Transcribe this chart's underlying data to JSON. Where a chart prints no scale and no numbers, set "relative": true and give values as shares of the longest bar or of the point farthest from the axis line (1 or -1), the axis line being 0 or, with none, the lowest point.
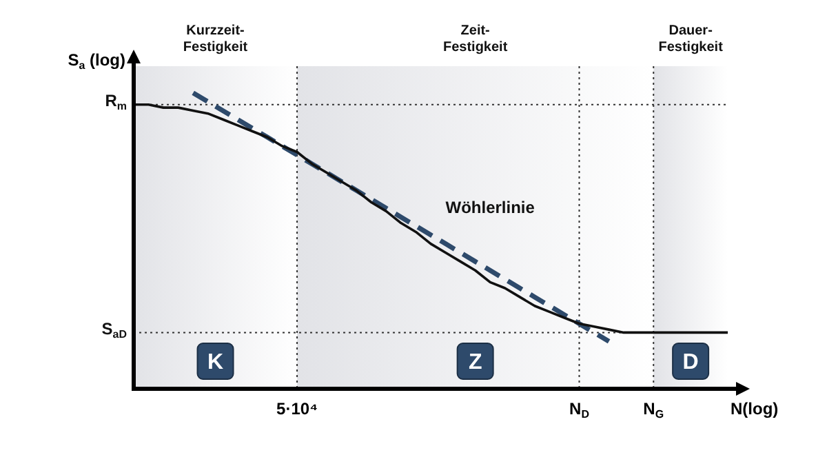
{
  "chart_data": {
    "type": "line",
    "relative": true,
    "xlabel": "N(log)",
    "ylabel": "S$_{a}$ (log)",
    "categories": [
      null,
      null,
      null,
      null,
      null,
      null,
      null,
      null,
      null,
      null,
      null,
      "5·10⁴",
      null,
      null,
      null,
      null,
      null,
      null,
      null,
      null,
      null,
      null,
      null,
      null,
      null,
      null,
      null,
      null,
      null,
      null,
      "N$_{D}$",
      null,
      null,
      null,
      null,
      "N$_{G}$",
      null,
      null,
      null,
      null,
      null
    ],
    "series": [
      {
        "color": "#111111",
        "line_style": "solid",
        "values": [
          0.96,
          0.96,
          0.95,
          0.95,
          0.94,
          0.93,
          0.91,
          0.89,
          0.87,
          0.85,
          0.82,
          0.8,
          0.76,
          0.73,
          0.7,
          0.67,
          0.63,
          0.6,
          0.56,
          0.53,
          0.49,
          0.46,
          0.43,
          0.4,
          0.36,
          0.34,
          0.31,
          0.28,
          0.26,
          0.24,
          0.22,
          0.21,
          0.2,
          0.19,
          0.19,
          0.19,
          0.19,
          0.19,
          0.19,
          0.19,
          0.19
        ]
      },
      {
        "color": "#2e4a6b",
        "line_style": "dashed",
        "values": [
          null,
          null,
          null,
          null,
          1.0,
          0.97,
          0.94,
          0.91,
          0.88,
          0.85,
          0.82,
          0.79,
          0.76,
          0.73,
          0.7,
          0.67,
          0.64,
          0.61,
          0.58,
          0.55,
          0.52,
          0.49,
          0.46,
          0.43,
          0.4,
          0.37,
          0.34,
          0.31,
          0.28,
          0.25,
          0.22,
          0.19,
          0.16,
          null,
          null,
          null,
          null,
          null,
          null,
          null,
          null
        ]
      }
    ],
    "ref_lines": [
      {
        "axis": "y",
        "value": 0.96,
        "label": "R$_{m}$",
        "line_style": "dotted"
      },
      {
        "axis": "y",
        "value": 0.19,
        "label": "S$_{aD}$",
        "line_style": "dotted"
      },
      {
        "axis": "x",
        "value": "5·10⁴",
        "line_style": "dotted"
      },
      {
        "axis": "x",
        "value": "N$_{D}$",
        "line_style": "dotted"
      },
      {
        "axis": "x",
        "value": "N$_{G}$",
        "line_style": "dotted"
      }
    ],
    "bands": [
      {
        "axis": "x",
        "from": "5·10⁴",
        "to": "N$_{G}$",
        "label": "Zeit-\nFestigkeit",
        "color": "#e2e3e7"
      }
    ],
    "annotations": [
      "Wöhlerlinie",
      "Kurzzeit-\nFestigkeit",
      "Dauer-\nFestigkeit",
      "K",
      "Z",
      "D"
    ],
    "legend": false,
    "marker": "none"
  }
}
